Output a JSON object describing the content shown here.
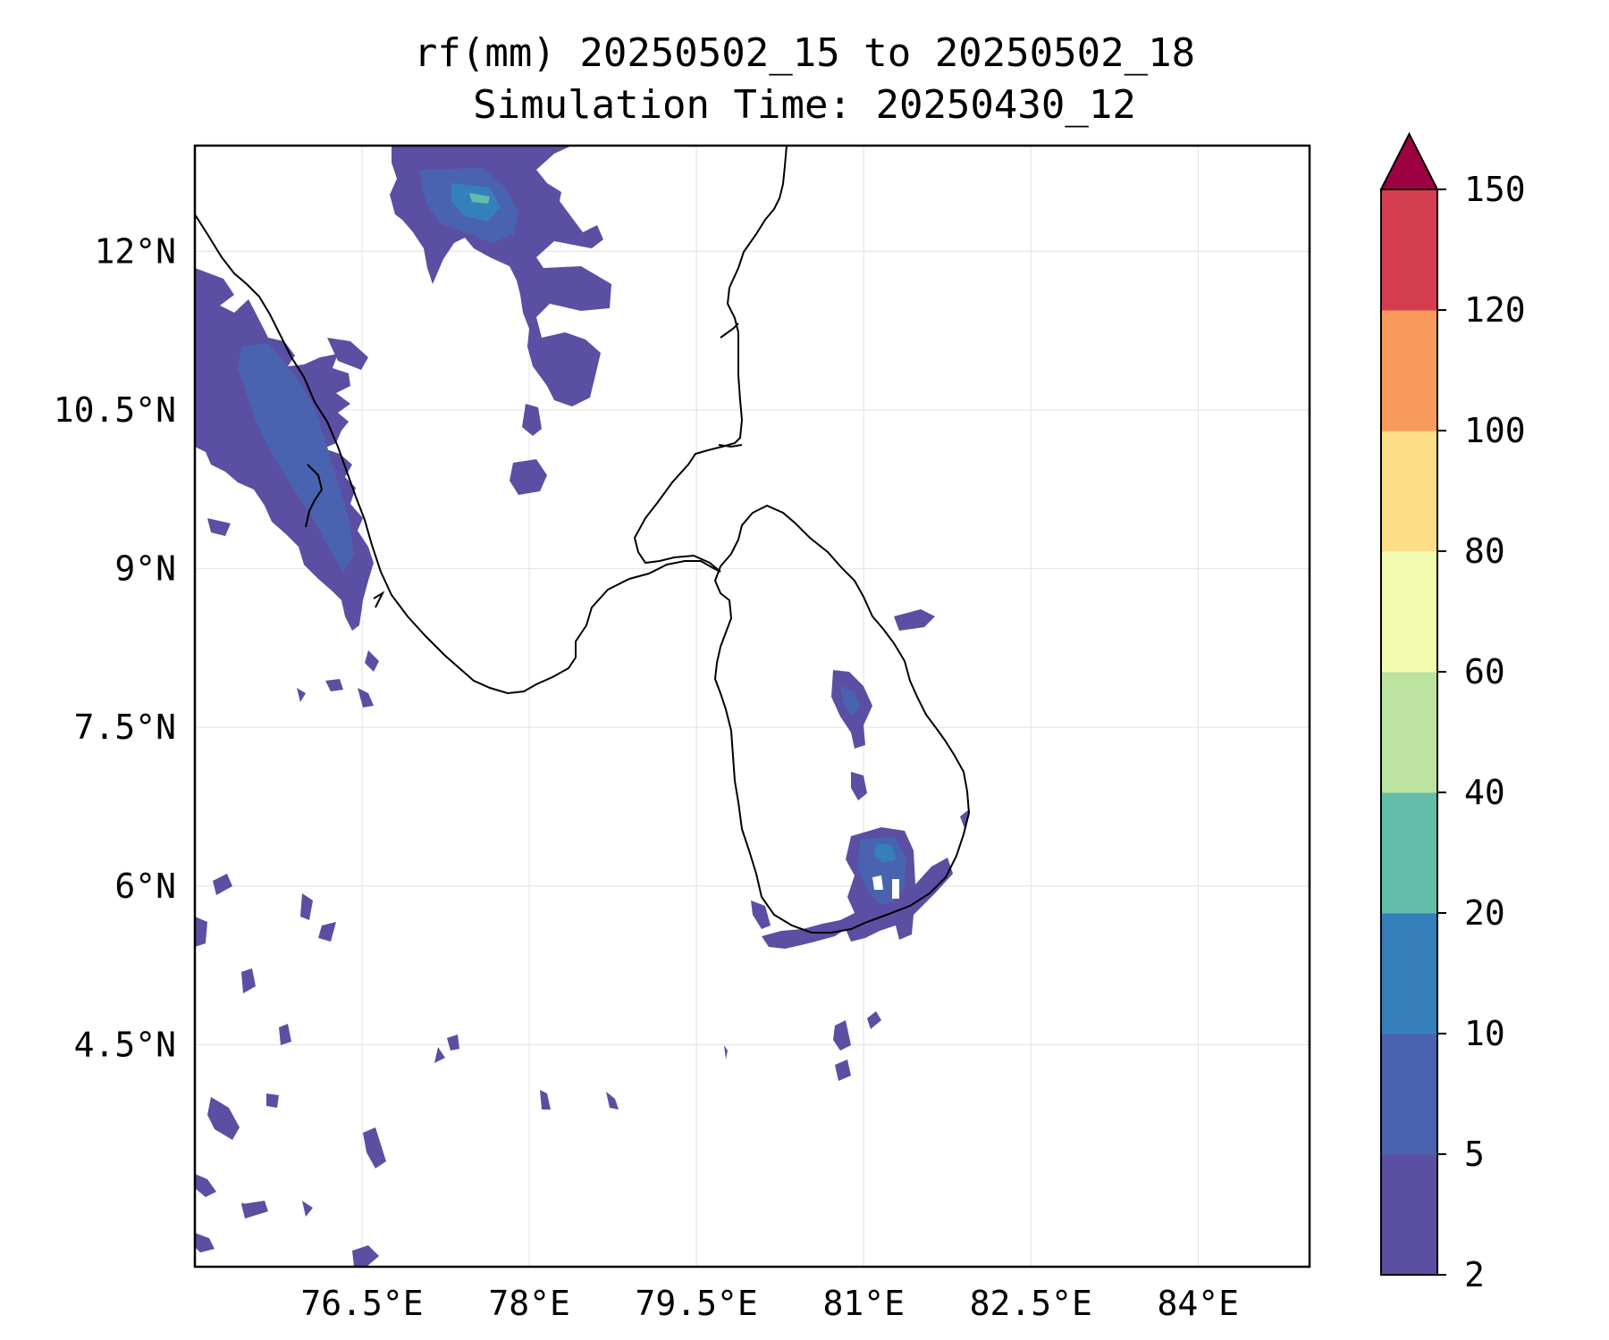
{
  "title": {
    "line1": "rf(mm) 20250502_15 to 20250502_18",
    "line2": "Simulation Time: 20250430_12"
  },
  "map": {
    "lon_range": [
      75.0,
      85.0
    ],
    "lat_range": [
      2.4,
      13.0
    ],
    "gridlines": true,
    "lon_ticks": [
      {
        "value": 76.5,
        "label": "76.5°E"
      },
      {
        "value": 78.0,
        "label": "78°E"
      },
      {
        "value": 79.5,
        "label": "79.5°E"
      },
      {
        "value": 81.0,
        "label": "81°E"
      },
      {
        "value": 82.5,
        "label": "82.5°E"
      },
      {
        "value": 84.0,
        "label": "84°E"
      }
    ],
    "lat_ticks": [
      {
        "value": 12.0,
        "label": "12°N"
      },
      {
        "value": 10.5,
        "label": "10.5°N"
      },
      {
        "value": 9.0,
        "label": "9°N"
      },
      {
        "value": 7.5,
        "label": "7.5°N"
      },
      {
        "value": 6.0,
        "label": "6°N"
      },
      {
        "value": 4.5,
        "label": "4.5°N"
      }
    ]
  },
  "colorbar": {
    "levels": [
      "2",
      "5",
      "10",
      "20",
      "40",
      "60",
      "80",
      "100",
      "120",
      "150"
    ],
    "colors": [
      "#5a4fa2",
      "#4a63b0",
      "#3580bb",
      "#62bea9",
      "#bde3a0",
      "#f2fbb0",
      "#fcde88",
      "#f99b5c",
      "#d43d4f"
    ],
    "extend_color": "#9e0142"
  },
  "precip_colors": {
    "light": "#5a4fa2",
    "moderate": "#4a63b0",
    "heavy": "#3580bb",
    "peak": "#62bea9"
  }
}
